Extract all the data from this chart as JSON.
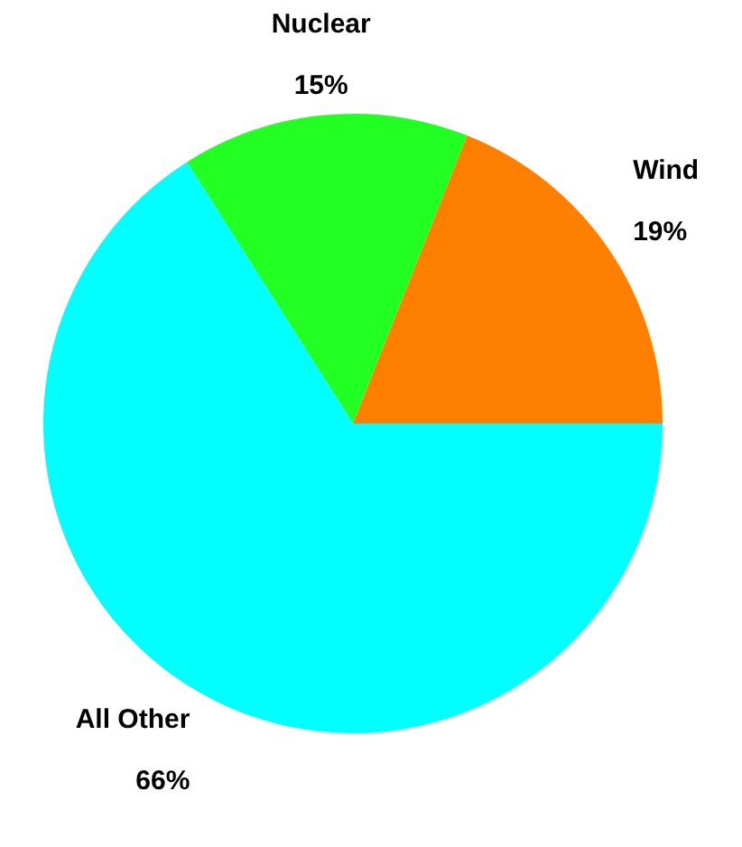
{
  "chart_data": {
    "type": "pie",
    "categories": [
      "All Other",
      "Nuclear",
      "Wind"
    ],
    "values": [
      66,
      15,
      19
    ],
    "colors": [
      "#00ffff",
      "#22ff22",
      "#ff8000"
    ],
    "value_labels": [
      "66%",
      "15%",
      "19%"
    ],
    "legend": false
  }
}
